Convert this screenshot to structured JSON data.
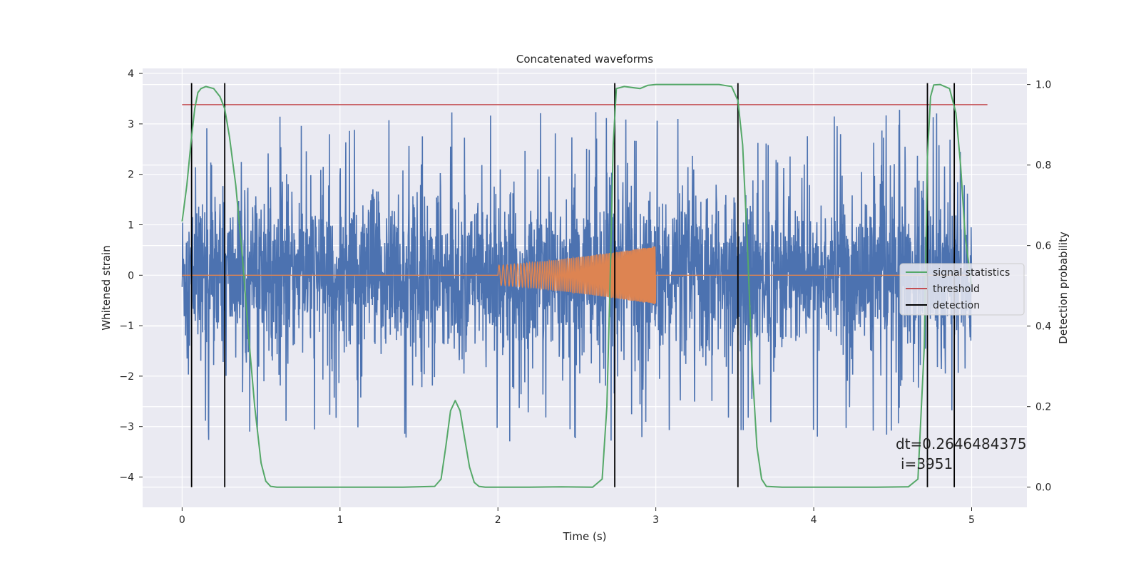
{
  "chart_data": {
    "type": "line",
    "title": "Concatenated waveforms",
    "xlabel": "Time (s)",
    "ylabel": "Whitened strain",
    "ylabel_right": "Detection probability",
    "xlim": [
      -0.25,
      5.35
    ],
    "ylim": [
      -4.6,
      4.1
    ],
    "ylim_right": [
      -0.05,
      1.04
    ],
    "x_ticks": [
      0,
      1,
      2,
      3,
      4,
      5
    ],
    "y_ticks": [
      -4,
      -3,
      -2,
      -1,
      0,
      1,
      2,
      3,
      4
    ],
    "y_ticks_right": [
      0.0,
      0.2,
      0.4,
      0.6,
      0.8,
      1.0
    ],
    "x_tick_labels": [
      "0",
      "1",
      "2",
      "3",
      "4",
      "5"
    ],
    "y_tick_labels": [
      "−4",
      "−3",
      "−2",
      "−1",
      "0",
      "1",
      "2",
      "3",
      "4"
    ],
    "y_tick_labels_right": [
      "0.0",
      "0.2",
      "0.4",
      "0.6",
      "0.8",
      "1.0"
    ],
    "grid": true,
    "legend_position": "center-right",
    "legend": [
      {
        "label": "signal statistics",
        "color": "#55a868"
      },
      {
        "label": "threshold",
        "color": "#c44e52"
      },
      {
        "label": "detection",
        "color": "#000000"
      }
    ],
    "series": [
      {
        "name": "signal statistics",
        "axis": "right",
        "color": "#55a868",
        "x": [
          0.0,
          0.03,
          0.06,
          0.08,
          0.1,
          0.12,
          0.15,
          0.2,
          0.24,
          0.27,
          0.3,
          0.34,
          0.38,
          0.42,
          0.46,
          0.5,
          0.53,
          0.56,
          0.6,
          0.8,
          1.0,
          1.2,
          1.4,
          1.6,
          1.64,
          1.67,
          1.7,
          1.73,
          1.76,
          1.79,
          1.82,
          1.85,
          1.88,
          1.92,
          2.0,
          2.2,
          2.4,
          2.6,
          2.66,
          2.69,
          2.71,
          2.73,
          2.75,
          2.8,
          2.9,
          2.95,
          3.0,
          3.2,
          3.4,
          3.48,
          3.52,
          3.55,
          3.58,
          3.61,
          3.64,
          3.67,
          3.7,
          3.8,
          4.0,
          4.2,
          4.4,
          4.6,
          4.66,
          4.7,
          4.72,
          4.74,
          4.76,
          4.8,
          4.86,
          4.9,
          4.93,
          4.96,
          5.0
        ],
        "values": [
          0.66,
          0.75,
          0.87,
          0.94,
          0.98,
          0.99,
          0.995,
          0.99,
          0.97,
          0.94,
          0.87,
          0.75,
          0.58,
          0.38,
          0.2,
          0.06,
          0.015,
          0.002,
          0.0,
          0.0,
          0.0,
          0.0,
          0.0,
          0.002,
          0.02,
          0.1,
          0.19,
          0.215,
          0.19,
          0.12,
          0.05,
          0.012,
          0.002,
          0.0,
          0.0,
          0.0,
          0.001,
          0.0,
          0.02,
          0.2,
          0.5,
          0.85,
          0.99,
          0.995,
          0.99,
          0.998,
          1.0,
          1.0,
          1.0,
          0.995,
          0.96,
          0.85,
          0.6,
          0.3,
          0.1,
          0.02,
          0.002,
          0.0,
          0.0,
          0.0,
          0.0,
          0.001,
          0.02,
          0.35,
          0.82,
          0.97,
          0.999,
          1.0,
          0.99,
          0.93,
          0.8,
          0.62,
          0.5
        ]
      },
      {
        "name": "threshold",
        "axis": "right",
        "color": "#c44e52",
        "x": [
          0.0,
          5.1
        ],
        "values": [
          0.95,
          0.95
        ]
      },
      {
        "name": "whitened strain",
        "axis": "left",
        "color": "#4c72b0",
        "x_range": [
          0.0,
          5.0
        ],
        "envelope": 1.1,
        "max_abs": 3.7
      },
      {
        "name": "injected waveform",
        "axis": "left",
        "color": "#dd8452",
        "x_start": 2.0,
        "x_end": 3.0,
        "amplitude_start": 0.2,
        "amplitude_end": 0.58
      }
    ],
    "detections": [
      0.06,
      0.27,
      2.74,
      3.52,
      4.72,
      4.89
    ],
    "annotation": {
      "line1": "dt=0.2646484375",
      "line2": "i=3951"
    }
  }
}
